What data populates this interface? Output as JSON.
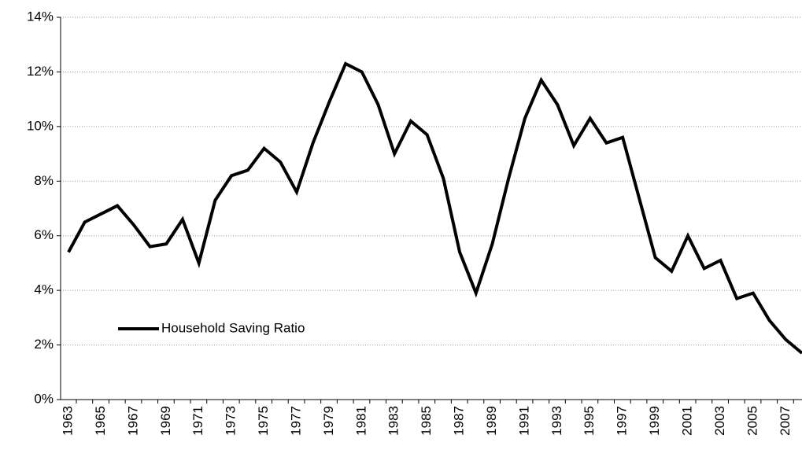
{
  "chart_data": {
    "type": "line",
    "categories": [
      "1963",
      null,
      "1965",
      null,
      "1967",
      null,
      "1969",
      null,
      "1971",
      null,
      "1973",
      null,
      "1975",
      null,
      "1977",
      null,
      "1979",
      null,
      "1981",
      null,
      "1983",
      null,
      "1985",
      null,
      "1987",
      null,
      "1989",
      null,
      "1991",
      null,
      "1993",
      null,
      "1995",
      null,
      "1997",
      null,
      "1999",
      null,
      "2001",
      null,
      "2003",
      null,
      "2005",
      null,
      "2007",
      null
    ],
    "series": [
      {
        "name": "Household Saving Ratio",
        "color": "#000000",
        "values": [
          5.4,
          6.5,
          6.8,
          7.1,
          6.4,
          5.6,
          5.7,
          6.6,
          5.0,
          7.3,
          8.2,
          8.4,
          9.2,
          8.7,
          7.6,
          9.4,
          10.9,
          12.3,
          12.0,
          10.8,
          9.0,
          10.2,
          9.7,
          8.1,
          5.4,
          3.9,
          5.7,
          8.1,
          10.3,
          11.7,
          10.8,
          9.3,
          10.3,
          9.4,
          9.6,
          7.4,
          5.2,
          4.7,
          6.0,
          4.8,
          5.1,
          3.7,
          3.9,
          2.9,
          2.2,
          1.7
        ]
      }
    ],
    "ylim": [
      0,
      14
    ],
    "yticks": [
      {
        "value": 0,
        "label": "0%"
      },
      {
        "value": 2,
        "label": "2%"
      },
      {
        "value": 4,
        "label": "4%"
      },
      {
        "value": 6,
        "label": "6%"
      },
      {
        "value": 8,
        "label": "8%"
      },
      {
        "value": 10,
        "label": "10%"
      },
      {
        "value": 12,
        "label": "12%"
      },
      {
        "value": 14,
        "label": "14%"
      }
    ],
    "grid": true,
    "legend": "lower left"
  }
}
